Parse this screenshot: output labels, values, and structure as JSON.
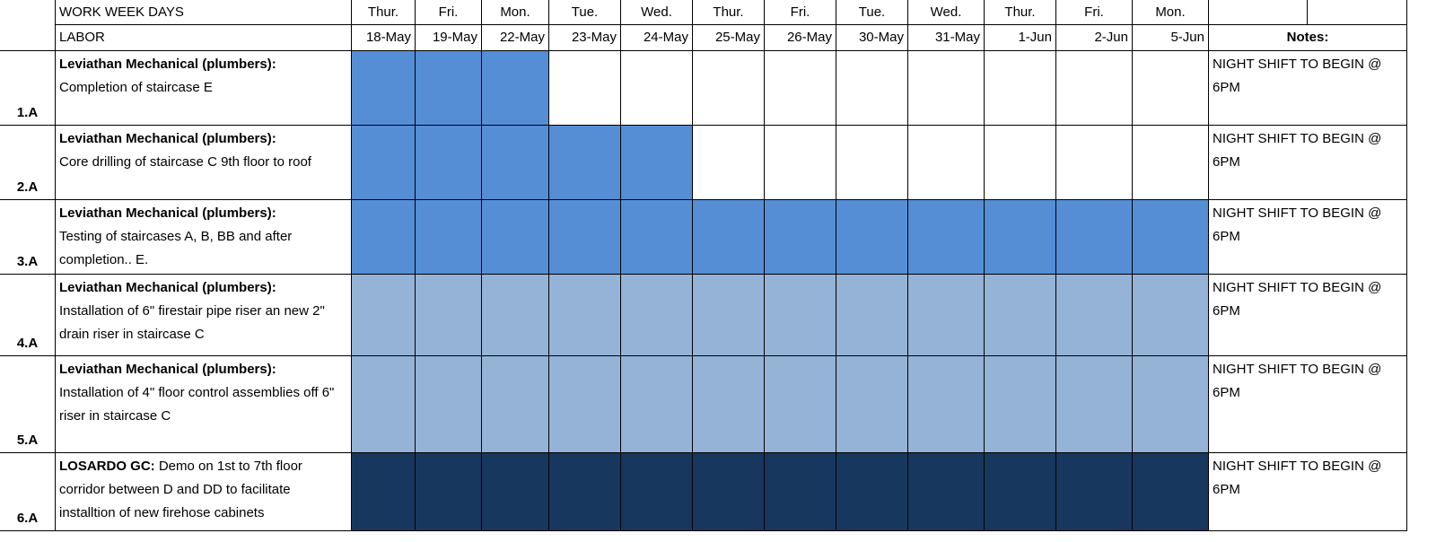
{
  "header": {
    "title": "WORK WEEK DAYS",
    "labor_label": "LABOR",
    "notes_label": "Notes:",
    "days": [
      "Thur.",
      "Fri.",
      "Mon.",
      "Tue.",
      "Wed.",
      "Thur.",
      "Fri.",
      "Tue.",
      "Wed.",
      "Thur.",
      "Fri.",
      "Mon."
    ],
    "dates": [
      "18-May",
      "19-May",
      "22-May",
      "23-May",
      "24-May",
      "25-May",
      "26-May",
      "30-May",
      "31-May",
      "1-Jun",
      "2-Jun",
      "5-Jun"
    ]
  },
  "rows": [
    {
      "id": "1.A",
      "contractor": "Leviathan Mechanical (plumbers):",
      "task": "Completion of staircase E",
      "note": "NIGHT SHIFT TO BEGIN @ 6PM",
      "shaded_days": 3,
      "color": "#558ed5"
    },
    {
      "id": "2.A",
      "contractor": "Leviathan Mechanical (plumbers):",
      "task": "Core drilling of staircase C 9th floor to roof",
      "note": "NIGHT SHIFT TO BEGIN @ 6PM",
      "shaded_days": 5,
      "color": "#558ed5"
    },
    {
      "id": "3.A",
      "contractor": "Leviathan Mechanical (plumbers):",
      "task": "Testing of staircases A, B, BB and after completion.. E.",
      "note": "NIGHT SHIFT TO BEGIN @ 6PM",
      "shaded_days": 12,
      "color": "#558ed5"
    },
    {
      "id": "4.A",
      "contractor": "Leviathan Mechanical (plumbers):",
      "task": "Installation of 6\" firestair pipe riser an new 2\" drain riser in staircase C",
      "note": "NIGHT SHIFT TO BEGIN @ 6PM",
      "shaded_days": 12,
      "color": "#95b3d7"
    },
    {
      "id": "5.A",
      "contractor": "Leviathan Mechanical (plumbers):",
      "task": "Installation of 4\" floor control assemblies off 6\" riser in staircase C",
      "note": "NIGHT SHIFT TO BEGIN @ 6PM",
      "shaded_days": 12,
      "color": "#95b3d7"
    },
    {
      "id": "6.A",
      "contractor": "LOSARDO GC:",
      "task": "Demo on 1st to 7th floor corridor between D and DD to facilitate installtion of new firehose cabinets",
      "note": "NIGHT SHIFT TO BEGIN @ 6PM",
      "shaded_days": 12,
      "color": "#17375e"
    }
  ]
}
